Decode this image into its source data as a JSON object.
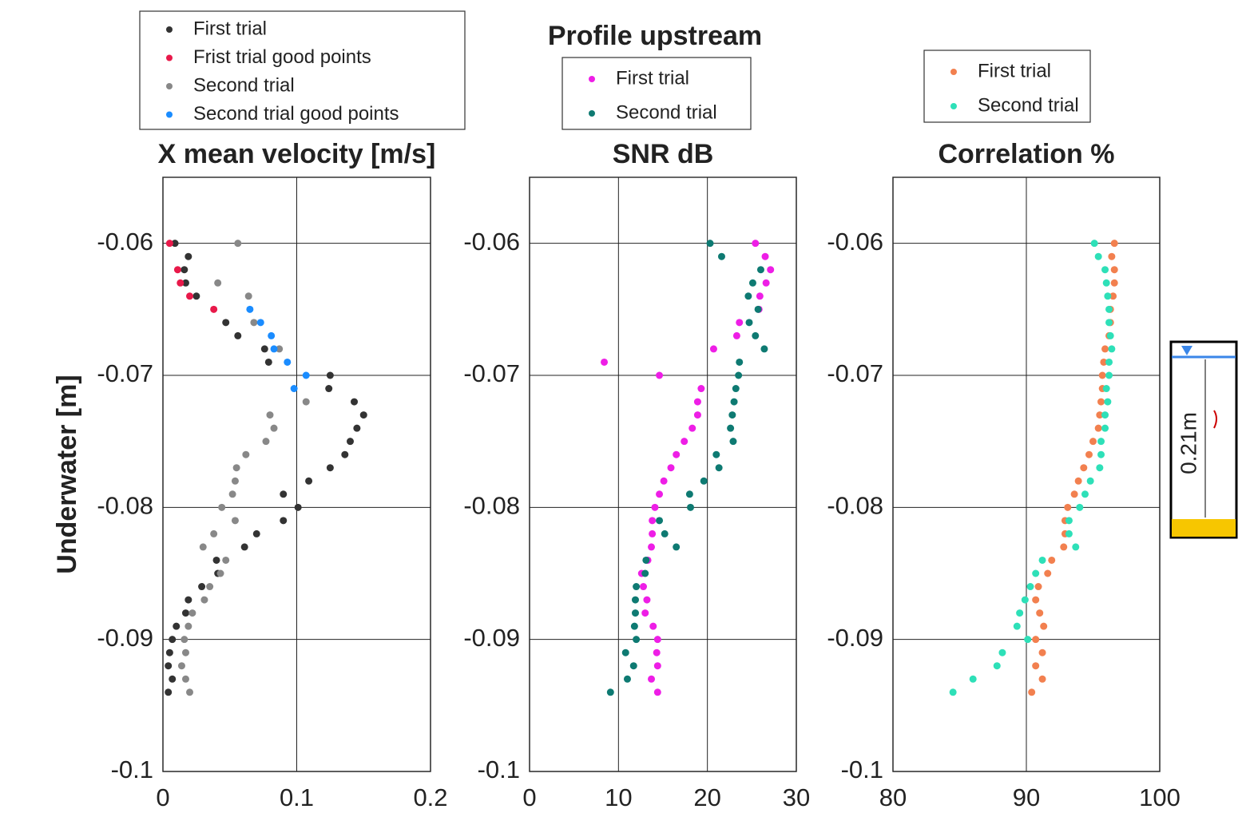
{
  "figure_title": "Profile upstream",
  "inset": {
    "label": "0.21m"
  },
  "chart_data": [
    {
      "type": "scatter",
      "title": "X mean velocity [m/s]",
      "ylabel": "Underwater [m]",
      "xlim": [
        0,
        0.2
      ],
      "ylim": [
        -0.1,
        -0.055
      ],
      "xticks": [
        0,
        0.1,
        0.2
      ],
      "yticks": [
        -0.06,
        -0.07,
        -0.08,
        -0.09,
        -0.1
      ],
      "grid": true,
      "series": [
        {
          "name": "First trial",
          "color": "#333333",
          "x": [
            0.009,
            0.019,
            0.016,
            0.017,
            0.025,
            0.047,
            0.056,
            0.076,
            0.079,
            0.125,
            0.124,
            0.143,
            0.15,
            0.145,
            0.14,
            0.136,
            0.125,
            0.109,
            0.09,
            0.101,
            0.09,
            0.07,
            0.061,
            0.04,
            0.041,
            0.029,
            0.019,
            0.017,
            0.01,
            0.007,
            0.005,
            0.004,
            0.007,
            0.004
          ],
          "values": [
            -0.06,
            -0.061,
            -0.062,
            -0.063,
            -0.064,
            -0.066,
            -0.067,
            -0.068,
            -0.069,
            -0.07,
            -0.071,
            -0.072,
            -0.073,
            -0.074,
            -0.075,
            -0.076,
            -0.077,
            -0.078,
            -0.079,
            -0.08,
            -0.081,
            -0.082,
            -0.083,
            -0.084,
            -0.085,
            -0.086,
            -0.087,
            -0.088,
            -0.089,
            -0.09,
            -0.091,
            -0.092,
            -0.093,
            -0.094
          ]
        },
        {
          "name": "Frist trial good points",
          "color": "#e8194a",
          "x": [
            0.005,
            0.011,
            0.013,
            0.02,
            0.038
          ],
          "values": [
            -0.06,
            -0.062,
            -0.063,
            -0.064,
            -0.065
          ]
        },
        {
          "name": "Second trial",
          "color": "#888888",
          "x": [
            0.056,
            0.041,
            0.064,
            0.068,
            0.087,
            0.107,
            0.08,
            0.083,
            0.077,
            0.062,
            0.055,
            0.054,
            0.052,
            0.044,
            0.054,
            0.038,
            0.03,
            0.047,
            0.043,
            0.035,
            0.031,
            0.022,
            0.019,
            0.016,
            0.017,
            0.014,
            0.017,
            0.02
          ],
          "values": [
            -0.06,
            -0.063,
            -0.064,
            -0.066,
            -0.068,
            -0.072,
            -0.073,
            -0.074,
            -0.075,
            -0.076,
            -0.077,
            -0.078,
            -0.079,
            -0.08,
            -0.081,
            -0.082,
            -0.083,
            -0.084,
            -0.085,
            -0.086,
            -0.087,
            -0.088,
            -0.089,
            -0.09,
            -0.091,
            -0.092,
            -0.093,
            -0.094
          ]
        },
        {
          "name": "Second trial good points",
          "color": "#1a8cff",
          "x": [
            0.065,
            0.073,
            0.081,
            0.083,
            0.093,
            0.107,
            0.098
          ],
          "values": [
            -0.065,
            -0.066,
            -0.067,
            -0.068,
            -0.069,
            -0.07,
            -0.071
          ]
        }
      ]
    },
    {
      "type": "scatter",
      "title": "SNR dB",
      "xlim": [
        0,
        30
      ],
      "ylim": [
        -0.1,
        -0.055
      ],
      "xticks": [
        0,
        10,
        20,
        30
      ],
      "yticks": [
        -0.06,
        -0.07,
        -0.08,
        -0.09,
        -0.1
      ],
      "grid": true,
      "series": [
        {
          "name": "First trial",
          "color": "#ee1ee6",
          "x": [
            25.4,
            26.5,
            27.1,
            26.6,
            25.9,
            25.8,
            23.6,
            23.3,
            20.7,
            8.4,
            14.6,
            19.3,
            18.9,
            18.9,
            18.3,
            17.4,
            16.5,
            15.9,
            15.1,
            14.6,
            14.1,
            13.8,
            13.8,
            13.7,
            13.3,
            12.6,
            12.8,
            13.2,
            13.0,
            13.9,
            14.4,
            14.3,
            14.4,
            13.7,
            14.4
          ],
          "values": [
            -0.06,
            -0.061,
            -0.062,
            -0.063,
            -0.064,
            -0.065,
            -0.066,
            -0.067,
            -0.068,
            -0.069,
            -0.07,
            -0.071,
            -0.072,
            -0.073,
            -0.074,
            -0.075,
            -0.076,
            -0.077,
            -0.078,
            -0.079,
            -0.08,
            -0.081,
            -0.082,
            -0.083,
            -0.084,
            -0.085,
            -0.086,
            -0.087,
            -0.088,
            -0.089,
            -0.09,
            -0.091,
            -0.092,
            -0.093,
            -0.094
          ]
        },
        {
          "name": "Second trial",
          "color": "#0e7a72",
          "x": [
            20.3,
            21.6,
            26.0,
            25.1,
            24.6,
            25.7,
            24.7,
            25.4,
            26.4,
            23.6,
            23.5,
            23.2,
            23.0,
            22.8,
            22.6,
            22.9,
            21.0,
            21.3,
            19.6,
            18.0,
            18.1,
            14.6,
            15.2,
            16.5,
            13.1,
            13.0,
            12.0,
            11.9,
            11.9,
            11.8,
            12.0,
            10.8,
            11.7,
            11.0,
            9.1
          ],
          "values": [
            -0.06,
            -0.061,
            -0.062,
            -0.063,
            -0.064,
            -0.065,
            -0.066,
            -0.067,
            -0.068,
            -0.069,
            -0.07,
            -0.071,
            -0.072,
            -0.073,
            -0.074,
            -0.075,
            -0.076,
            -0.077,
            -0.078,
            -0.079,
            -0.08,
            -0.081,
            -0.082,
            -0.083,
            -0.084,
            -0.085,
            -0.086,
            -0.087,
            -0.088,
            -0.089,
            -0.09,
            -0.091,
            -0.092,
            -0.093,
            -0.094
          ]
        }
      ]
    },
    {
      "type": "scatter",
      "title": "Correlation %",
      "xlim": [
        80,
        100
      ],
      "ylim": [
        -0.1,
        -0.055
      ],
      "xticks": [
        80,
        90,
        100
      ],
      "yticks": [
        -0.06,
        -0.07,
        -0.08,
        -0.09,
        -0.1
      ],
      "grid": true,
      "series": [
        {
          "name": "First trial",
          "color": "#f2804f",
          "x": [
            96.6,
            96.4,
            96.6,
            96.6,
            96.5,
            96.3,
            96.3,
            96.2,
            95.9,
            95.8,
            95.7,
            95.7,
            95.6,
            95.5,
            95.4,
            95.0,
            94.7,
            94.3,
            93.9,
            93.6,
            93.1,
            92.9,
            92.9,
            92.8,
            91.9,
            91.6,
            90.9,
            90.7,
            91.0,
            91.3,
            90.7,
            91.2,
            90.7,
            91.2,
            90.4
          ],
          "values": [
            -0.06,
            -0.061,
            -0.062,
            -0.063,
            -0.064,
            -0.065,
            -0.066,
            -0.067,
            -0.068,
            -0.069,
            -0.07,
            -0.071,
            -0.072,
            -0.073,
            -0.074,
            -0.075,
            -0.076,
            -0.077,
            -0.078,
            -0.079,
            -0.08,
            -0.081,
            -0.082,
            -0.083,
            -0.084,
            -0.085,
            -0.086,
            -0.087,
            -0.088,
            -0.089,
            -0.09,
            -0.091,
            -0.092,
            -0.093,
            -0.094
          ]
        },
        {
          "name": "Second trial",
          "color": "#2ee0b8",
          "x": [
            95.1,
            95.4,
            95.9,
            96.0,
            96.1,
            96.2,
            96.2,
            96.3,
            96.4,
            96.2,
            96.2,
            96.0,
            96.1,
            95.9,
            95.9,
            95.6,
            95.6,
            95.5,
            94.8,
            94.4,
            94.0,
            93.2,
            93.2,
            93.7,
            91.2,
            90.7,
            90.3,
            89.9,
            89.5,
            89.3,
            90.1,
            88.2,
            87.8,
            86.0,
            84.5
          ],
          "values": [
            -0.06,
            -0.061,
            -0.062,
            -0.063,
            -0.064,
            -0.065,
            -0.066,
            -0.067,
            -0.068,
            -0.069,
            -0.07,
            -0.071,
            -0.072,
            -0.073,
            -0.074,
            -0.075,
            -0.076,
            -0.077,
            -0.078,
            -0.079,
            -0.08,
            -0.081,
            -0.082,
            -0.083,
            -0.084,
            -0.085,
            -0.086,
            -0.087,
            -0.088,
            -0.089,
            -0.09,
            -0.091,
            -0.092,
            -0.093,
            -0.094
          ]
        }
      ]
    }
  ]
}
